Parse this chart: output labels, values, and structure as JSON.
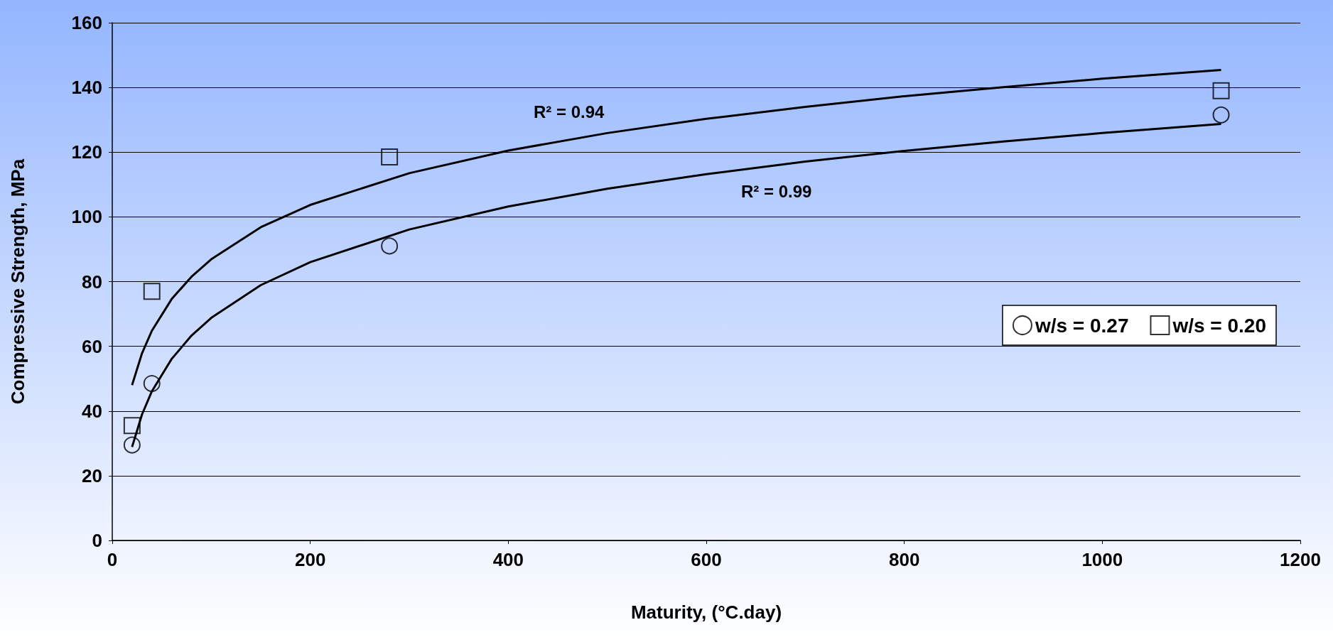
{
  "chart_data": {
    "type": "scatter",
    "xlabel": "Maturity, (°C.day)",
    "ylabel": "Compressive Strength, MPa",
    "xlim": [
      0,
      1200
    ],
    "xticks": [
      0,
      200,
      400,
      600,
      800,
      1000,
      1200
    ],
    "ylim": [
      0,
      160
    ],
    "yticks": [
      0,
      20,
      40,
      60,
      80,
      100,
      120,
      140,
      160
    ],
    "grid": "y",
    "legend": "right",
    "series": [
      {
        "name": "w/s = 0.27",
        "color": "#000000",
        "marker": "circle",
        "x": [
          20,
          40,
          280,
          1120
        ],
        "values": [
          29.5,
          48.5,
          91,
          131.5
        ]
      },
      {
        "name": "w/s = 0.20",
        "color": "#000000",
        "marker": "square",
        "x": [
          20,
          40,
          280,
          1120
        ],
        "values": [
          35.5,
          77,
          118.5,
          139
        ]
      },
      {
        "type": "line",
        "color": "#000000",
        "marker": "none",
        "line_style": "solid",
        "x": [
          20,
          30,
          40,
          60,
          80,
          100,
          150,
          200,
          300,
          400,
          500,
          600,
          700,
          800,
          900,
          1000,
          1120
        ],
        "values": [
          48.0,
          57.8,
          64.8,
          74.6,
          81.5,
          86.9,
          96.8,
          103.7,
          113.5,
          120.5,
          125.9,
          130.3,
          134.0,
          137.3,
          140.1,
          142.7,
          145.4
        ]
      },
      {
        "type": "line",
        "color": "#000000",
        "marker": "none",
        "line_style": "solid",
        "x": [
          20,
          30,
          40,
          60,
          80,
          100,
          150,
          200,
          300,
          400,
          500,
          600,
          700,
          800,
          900,
          1000,
          1120
        ],
        "values": [
          28.9,
          38.9,
          46.1,
          56.1,
          63.3,
          68.8,
          78.9,
          86.0,
          96.1,
          103.2,
          108.7,
          113.2,
          117.1,
          120.4,
          123.3,
          125.9,
          128.7
        ]
      }
    ],
    "annotations": [
      "R² = 0.94",
      "R² = 0.99"
    ]
  }
}
